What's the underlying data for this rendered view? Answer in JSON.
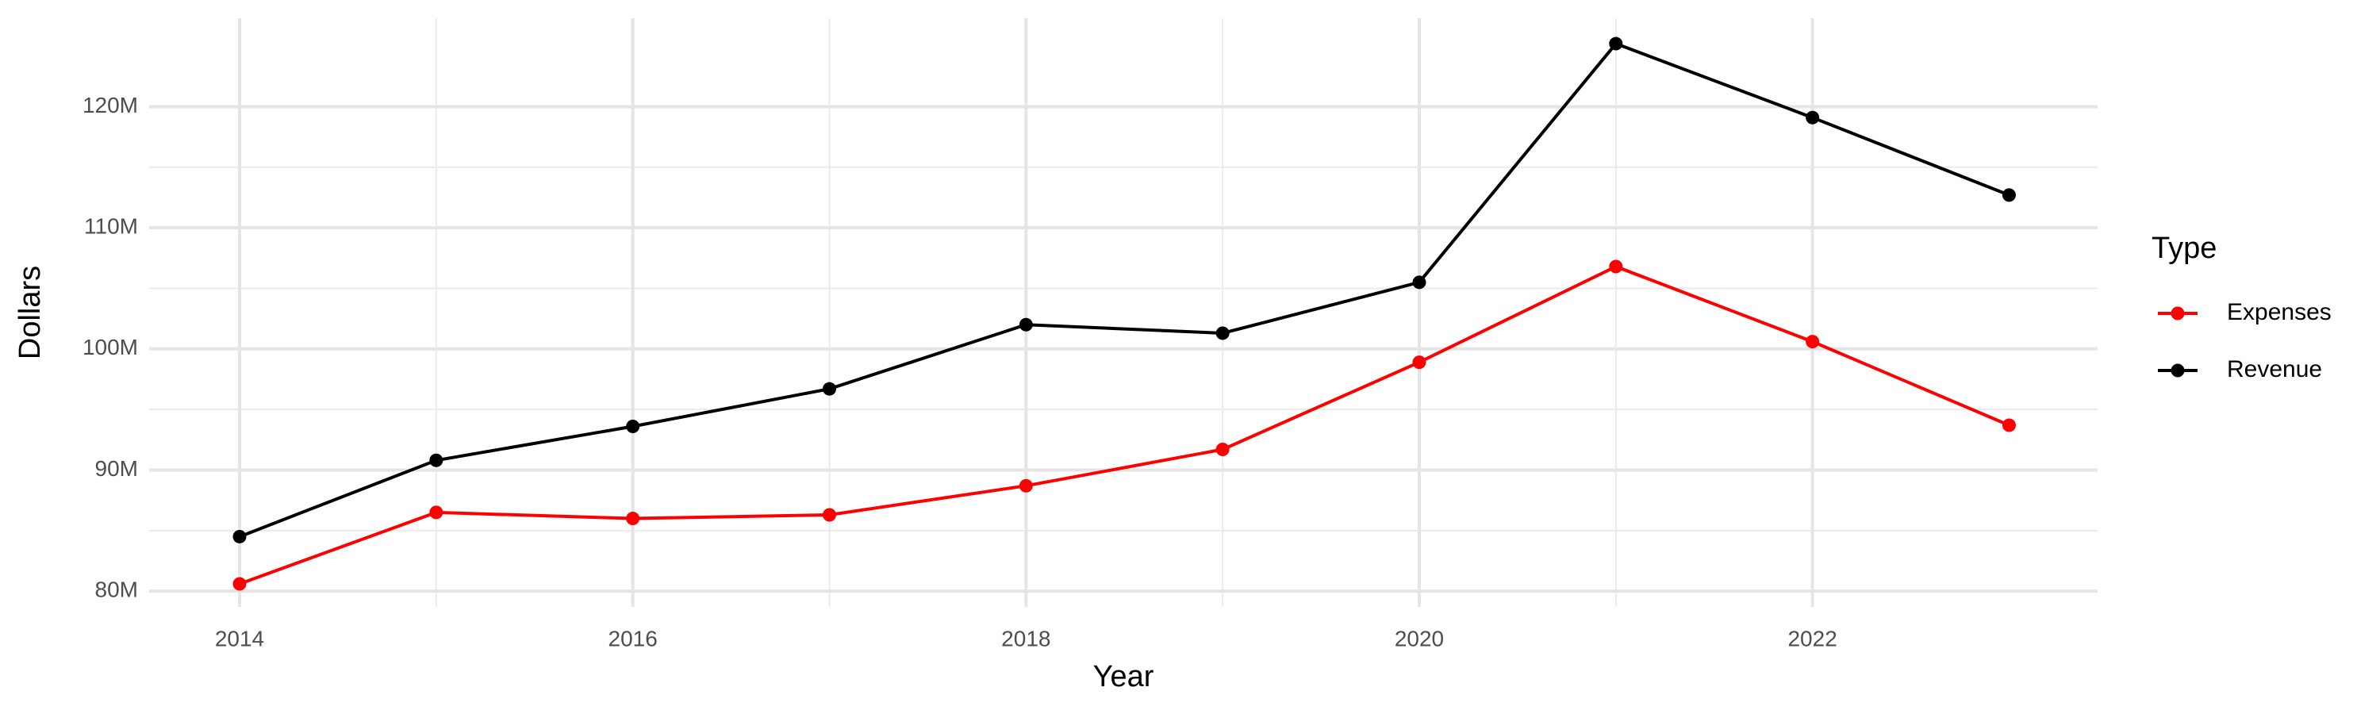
{
  "chart_data": {
    "type": "line",
    "x_label": "Year",
    "y_label": "Dollars",
    "legend_title": "Type",
    "legend": "right",
    "grid": true,
    "x": [
      2014,
      2015,
      2016,
      2017,
      2018,
      2019,
      2020,
      2021,
      2022,
      2023
    ],
    "series": [
      {
        "name": "Expenses",
        "color": "#ff0000",
        "values": [
          80600000,
          86500000,
          86000000,
          86300000,
          88700000,
          91700000,
          98900000,
          106800000,
          100600000,
          93700000
        ]
      },
      {
        "name": "Revenue",
        "color": "#000000",
        "values": [
          84500000,
          90800000,
          93600000,
          96700000,
          102000000,
          101300000,
          105500000,
          125200000,
          119100000,
          112700000
        ]
      }
    ],
    "xlim": [
      2013.54,
      2023.45
    ],
    "xticks": [
      2014,
      2016,
      2018,
      2020,
      2022
    ],
    "ylim": [
      78700000,
      127300000
    ],
    "yticks": [
      {
        "value": 80000000,
        "label": "80M"
      },
      {
        "value": 90000000,
        "label": "90M"
      },
      {
        "value": 100000000,
        "label": "100M"
      },
      {
        "value": 110000000,
        "label": "110M"
      },
      {
        "value": 120000000,
        "label": "120M"
      }
    ]
  }
}
